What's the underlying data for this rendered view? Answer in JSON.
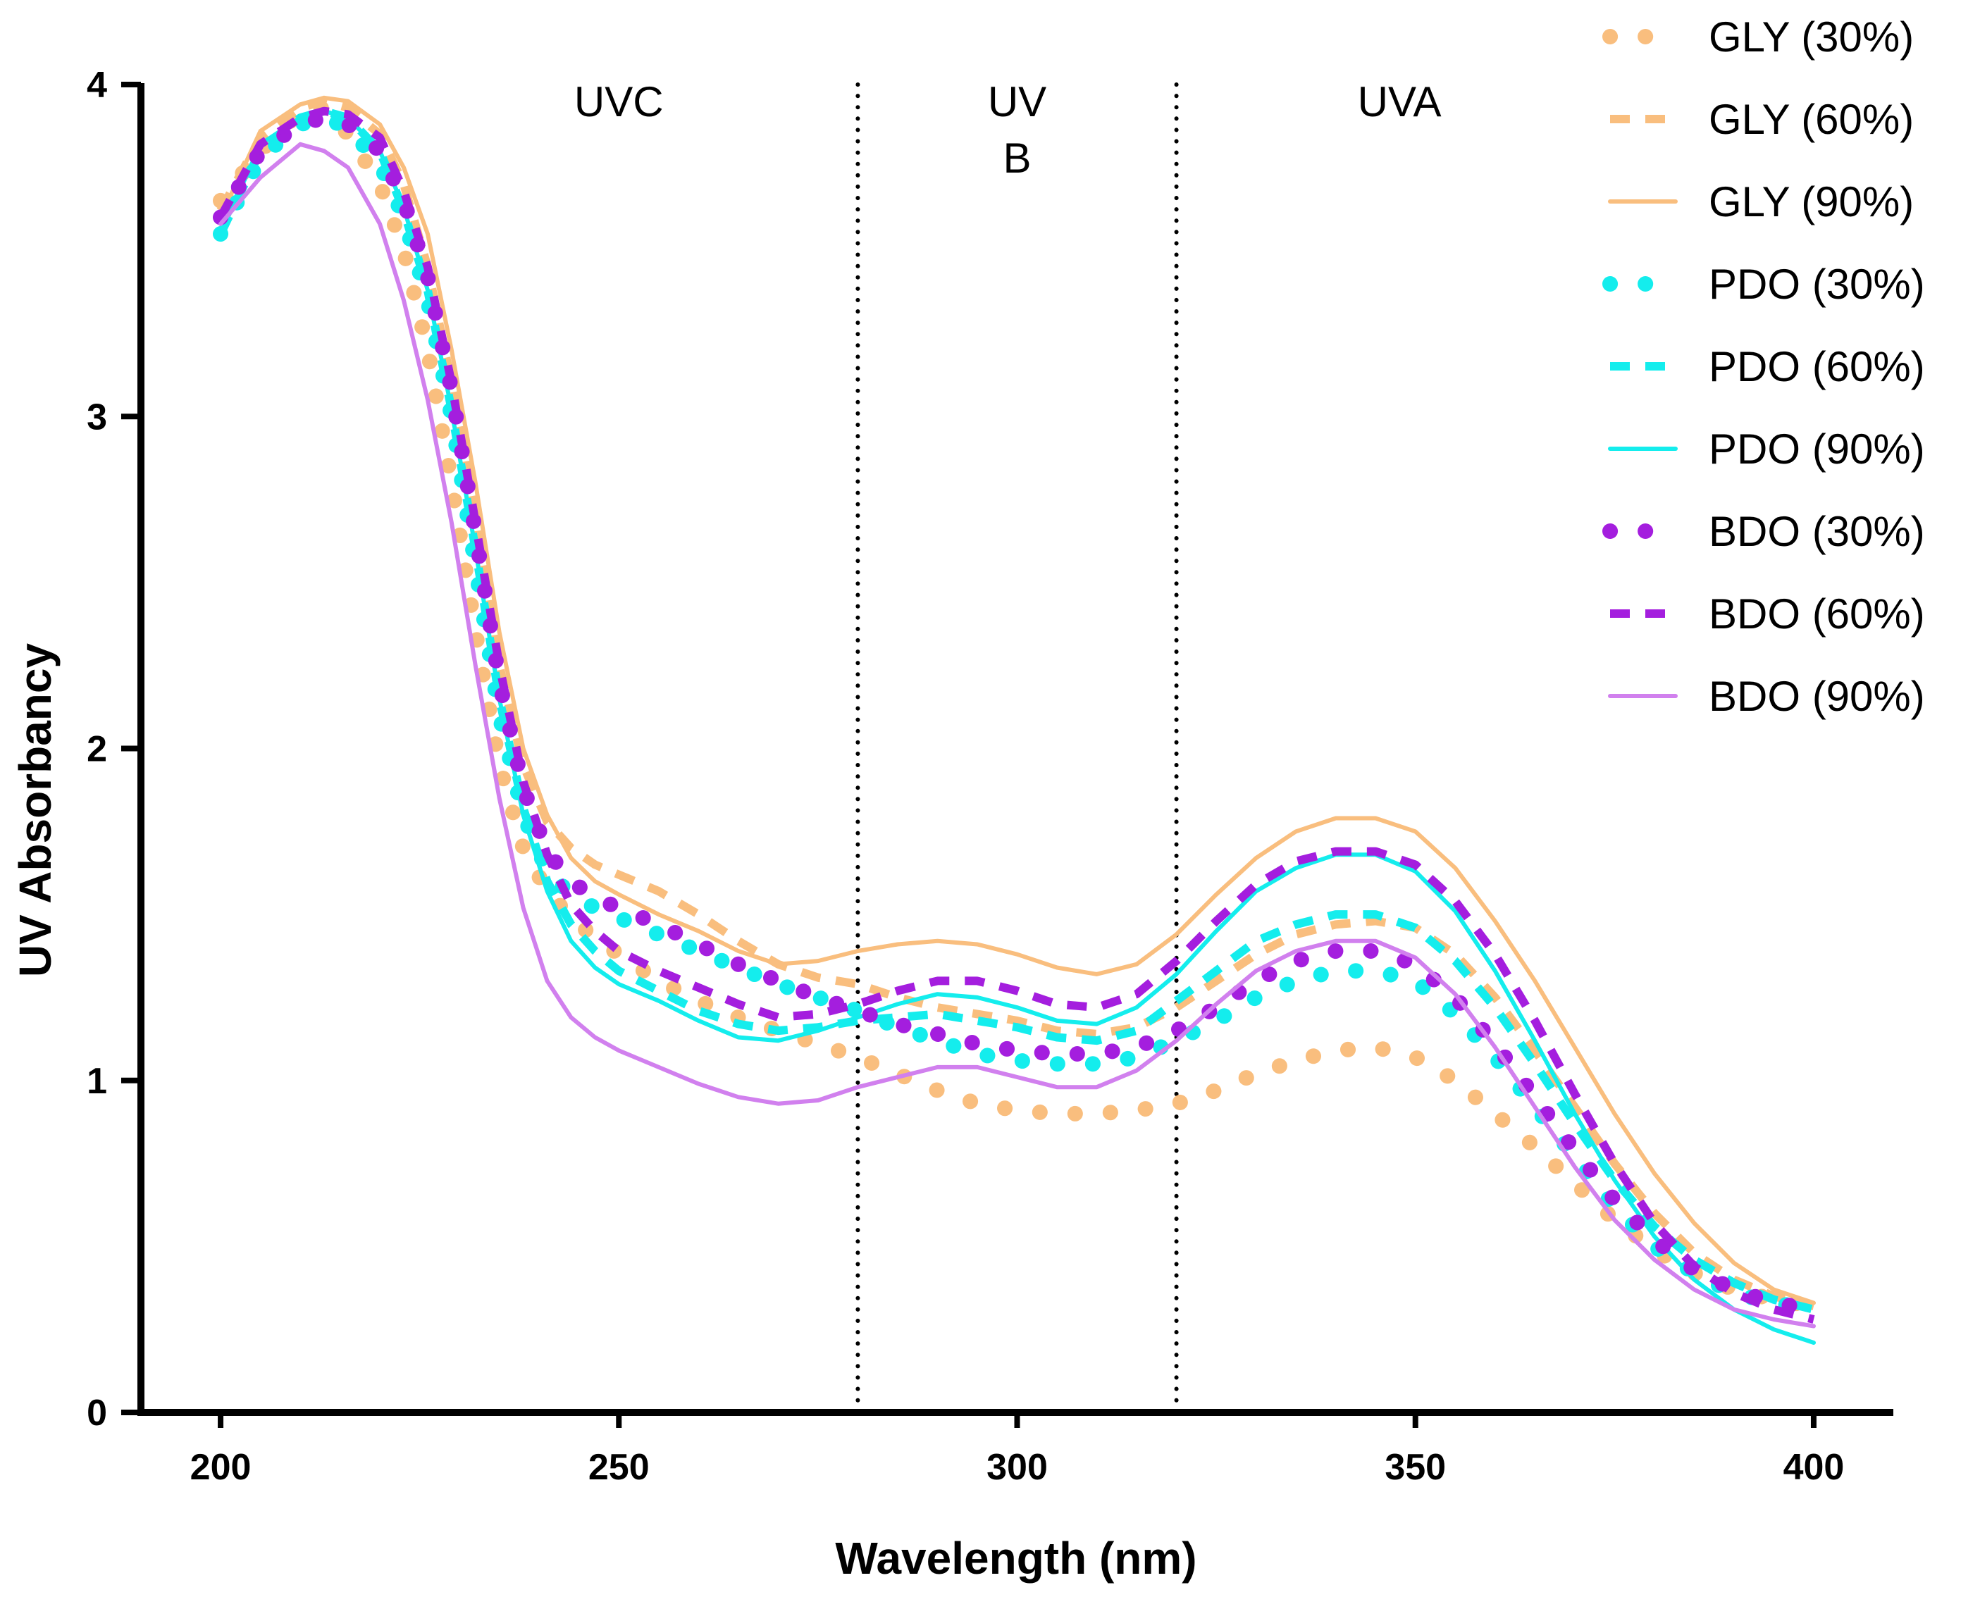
{
  "chart_data": {
    "type": "line",
    "title": "",
    "xlabel": "Wavelength (nm)",
    "ylabel": "UV Absorbancy",
    "xlim": [
      190,
      410
    ],
    "ylim": [
      0,
      4
    ],
    "xticks": [
      200,
      250,
      300,
      350,
      400
    ],
    "yticks": [
      0,
      1,
      2,
      3,
      4
    ],
    "grid": false,
    "legend_position": "top-right",
    "regions": [
      {
        "label_lines": [
          "UVC"
        ],
        "center_x": 250
      },
      {
        "label_lines": [
          "UV",
          "B"
        ],
        "center_x": 300
      },
      {
        "label_lines": [
          "UVA"
        ],
        "center_x": 348
      }
    ],
    "dividers": [
      280,
      320
    ],
    "x": [
      200,
      205,
      210,
      213,
      216,
      220,
      223,
      226,
      229,
      232,
      235,
      238,
      241,
      244,
      247,
      250,
      255,
      260,
      265,
      270,
      275,
      280,
      285,
      290,
      295,
      300,
      305,
      310,
      315,
      320,
      325,
      330,
      335,
      340,
      345,
      350,
      355,
      360,
      365,
      370,
      375,
      380,
      385,
      390,
      395,
      400
    ],
    "series": [
      {
        "name": "GLY (30%)",
        "color": "#F9BE7E",
        "style": "dotted",
        "values": [
          3.65,
          3.8,
          3.92,
          3.93,
          3.85,
          3.7,
          3.5,
          3.2,
          2.8,
          2.35,
          1.95,
          1.7,
          1.57,
          1.49,
          1.43,
          1.38,
          1.3,
          1.24,
          1.19,
          1.15,
          1.11,
          1.07,
          1.02,
          0.97,
          0.93,
          0.91,
          0.9,
          0.9,
          0.91,
          0.93,
          0.97,
          1.02,
          1.06,
          1.09,
          1.1,
          1.07,
          1.0,
          0.9,
          0.8,
          0.69,
          0.58,
          0.49,
          0.42,
          0.37,
          0.34,
          0.32
        ]
      },
      {
        "name": "GLY (60%)",
        "color": "#F9BE7E",
        "style": "dashed",
        "values": [
          3.62,
          3.84,
          3.93,
          3.95,
          3.93,
          3.85,
          3.7,
          3.45,
          3.1,
          2.7,
          2.25,
          1.95,
          1.78,
          1.7,
          1.65,
          1.62,
          1.57,
          1.5,
          1.42,
          1.35,
          1.31,
          1.29,
          1.25,
          1.22,
          1.2,
          1.18,
          1.15,
          1.14,
          1.16,
          1.22,
          1.3,
          1.38,
          1.44,
          1.47,
          1.48,
          1.46,
          1.38,
          1.25,
          1.09,
          0.92,
          0.75,
          0.6,
          0.48,
          0.4,
          0.35,
          0.32
        ]
      },
      {
        "name": "GLY (90%)",
        "color": "#F9BE7E",
        "style": "solid",
        "values": [
          3.6,
          3.86,
          3.94,
          3.96,
          3.95,
          3.88,
          3.75,
          3.55,
          3.2,
          2.8,
          2.35,
          2.0,
          1.8,
          1.67,
          1.6,
          1.56,
          1.5,
          1.45,
          1.39,
          1.35,
          1.36,
          1.39,
          1.41,
          1.42,
          1.41,
          1.38,
          1.34,
          1.32,
          1.35,
          1.44,
          1.56,
          1.67,
          1.75,
          1.79,
          1.79,
          1.75,
          1.64,
          1.48,
          1.3,
          1.1,
          0.9,
          0.72,
          0.57,
          0.45,
          0.37,
          0.33
        ]
      },
      {
        "name": "PDO (30%)",
        "color": "#14EDED",
        "style": "dotted",
        "values": [
          3.55,
          3.78,
          3.88,
          3.9,
          3.87,
          3.76,
          3.6,
          3.35,
          3.0,
          2.55,
          2.1,
          1.8,
          1.63,
          1.56,
          1.52,
          1.49,
          1.44,
          1.39,
          1.34,
          1.29,
          1.25,
          1.21,
          1.16,
          1.12,
          1.08,
          1.06,
          1.05,
          1.05,
          1.07,
          1.12,
          1.18,
          1.25,
          1.3,
          1.33,
          1.33,
          1.3,
          1.2,
          1.07,
          0.92,
          0.77,
          0.62,
          0.5,
          0.42,
          0.36,
          0.33,
          0.31
        ]
      },
      {
        "name": "PDO (60%)",
        "color": "#14EDED",
        "style": "dashed",
        "values": [
          3.55,
          3.8,
          3.9,
          3.92,
          3.9,
          3.8,
          3.62,
          3.38,
          3.02,
          2.6,
          2.15,
          1.82,
          1.6,
          1.47,
          1.39,
          1.33,
          1.27,
          1.21,
          1.17,
          1.15,
          1.16,
          1.18,
          1.19,
          1.2,
          1.18,
          1.16,
          1.13,
          1.12,
          1.15,
          1.24,
          1.33,
          1.42,
          1.47,
          1.5,
          1.5,
          1.46,
          1.36,
          1.22,
          1.05,
          0.87,
          0.7,
          0.56,
          0.46,
          0.39,
          0.34,
          0.31
        ]
      },
      {
        "name": "PDO (90%)",
        "color": "#14EDED",
        "style": "solid",
        "values": [
          3.55,
          3.82,
          3.9,
          3.92,
          3.9,
          3.8,
          3.63,
          3.38,
          3.02,
          2.6,
          2.15,
          1.8,
          1.57,
          1.42,
          1.34,
          1.29,
          1.24,
          1.18,
          1.13,
          1.12,
          1.15,
          1.19,
          1.23,
          1.26,
          1.25,
          1.22,
          1.18,
          1.17,
          1.22,
          1.32,
          1.45,
          1.57,
          1.64,
          1.68,
          1.68,
          1.63,
          1.51,
          1.33,
          1.12,
          0.9,
          0.7,
          0.53,
          0.4,
          0.31,
          0.25,
          0.21
        ]
      },
      {
        "name": "BDO (30%)",
        "color": "#A41EDE",
        "style": "dotted",
        "values": [
          3.6,
          3.8,
          3.88,
          3.9,
          3.88,
          3.8,
          3.65,
          3.42,
          3.08,
          2.65,
          2.2,
          1.88,
          1.69,
          1.6,
          1.55,
          1.52,
          1.47,
          1.41,
          1.35,
          1.3,
          1.25,
          1.21,
          1.17,
          1.14,
          1.11,
          1.09,
          1.08,
          1.08,
          1.1,
          1.15,
          1.22,
          1.3,
          1.36,
          1.39,
          1.39,
          1.35,
          1.25,
          1.11,
          0.95,
          0.79,
          0.64,
          0.52,
          0.43,
          0.37,
          0.33,
          0.31
        ]
      },
      {
        "name": "BDO (60%)",
        "color": "#A41EDE",
        "style": "dashed",
        "values": [
          3.6,
          3.82,
          3.9,
          3.92,
          3.91,
          3.84,
          3.68,
          3.45,
          3.1,
          2.68,
          2.25,
          1.9,
          1.68,
          1.53,
          1.45,
          1.39,
          1.33,
          1.28,
          1.23,
          1.19,
          1.2,
          1.23,
          1.27,
          1.3,
          1.3,
          1.27,
          1.23,
          1.22,
          1.26,
          1.36,
          1.48,
          1.59,
          1.66,
          1.69,
          1.69,
          1.65,
          1.54,
          1.38,
          1.18,
          0.96,
          0.75,
          0.57,
          0.44,
          0.36,
          0.31,
          0.28
        ]
      },
      {
        "name": "BDO (90%)",
        "color": "#D180EE",
        "style": "solid",
        "values": [
          3.58,
          3.72,
          3.82,
          3.8,
          3.75,
          3.58,
          3.35,
          3.05,
          2.68,
          2.25,
          1.85,
          1.52,
          1.3,
          1.19,
          1.13,
          1.09,
          1.04,
          0.99,
          0.95,
          0.93,
          0.94,
          0.98,
          1.01,
          1.04,
          1.04,
          1.01,
          0.98,
          0.98,
          1.03,
          1.12,
          1.23,
          1.33,
          1.39,
          1.42,
          1.42,
          1.37,
          1.26,
          1.1,
          0.92,
          0.74,
          0.58,
          0.46,
          0.37,
          0.31,
          0.28,
          0.26
        ]
      }
    ]
  }
}
